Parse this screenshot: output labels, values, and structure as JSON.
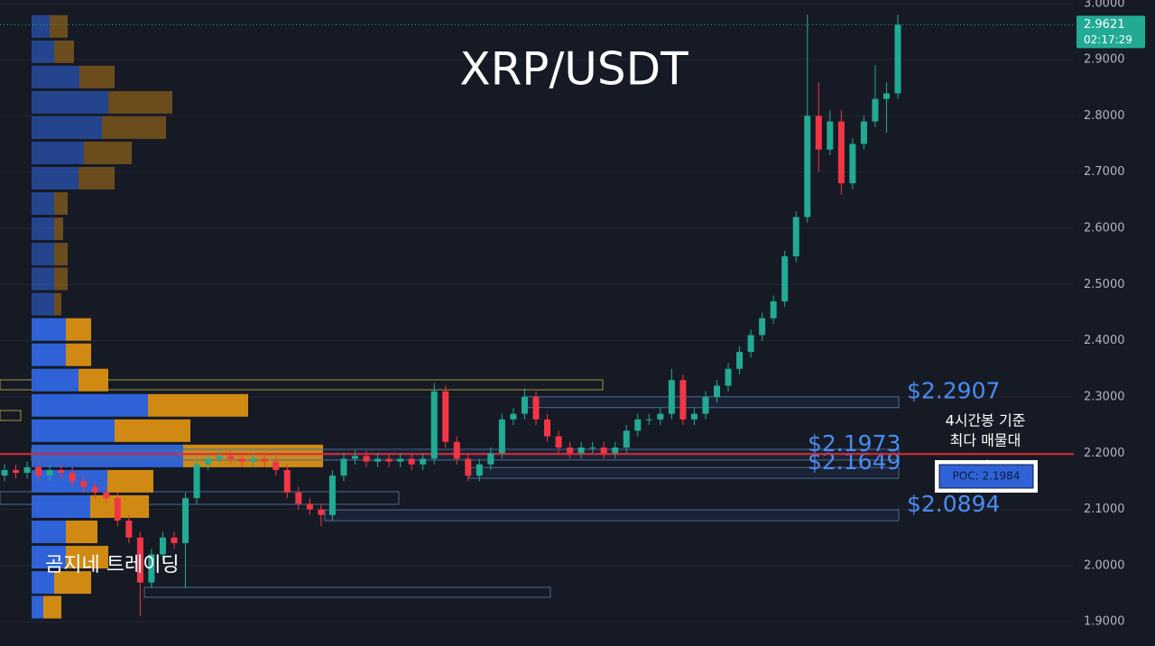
{
  "chart_data": {
    "type": "candlestick",
    "title": "XRP/USDT",
    "watermark": "곰지네 트레이딩",
    "up_color": "#22ab94",
    "down_color": "#f23645",
    "grid": true,
    "ylim": [
      1.857,
      3.006
    ],
    "yticks": [
      {
        "value": 1.9,
        "label": "1.9000"
      },
      {
        "value": 2.0,
        "label": "2.0000"
      },
      {
        "value": 2.1,
        "label": "2.1000"
      },
      {
        "value": 2.2,
        "label": "2.2000"
      },
      {
        "value": 2.3,
        "label": "2.3000"
      },
      {
        "value": 2.4,
        "label": "2.4000"
      },
      {
        "value": 2.5,
        "label": "2.5000"
      },
      {
        "value": 2.6,
        "label": "2.6000"
      },
      {
        "value": 2.7,
        "label": "2.7000"
      },
      {
        "value": 2.8,
        "label": "2.8000"
      },
      {
        "value": 2.9,
        "label": "2.9000"
      },
      {
        "value": 3.0,
        "label": "3.0000"
      }
    ],
    "open": [
      2.16,
      2.17,
      2.165,
      2.175,
      2.16,
      2.17,
      2.165,
      2.15,
      2.14,
      2.13,
      2.12,
      2.08,
      2.05,
      1.97,
      2.02,
      2.05,
      2.04,
      2.12,
      2.18,
      2.19,
      2.195,
      2.19,
      2.185,
      2.19,
      2.185,
      2.17,
      2.13,
      2.11,
      2.1,
      2.09,
      2.16,
      2.19,
      2.195,
      2.185,
      2.19,
      2.185,
      2.19,
      2.18,
      2.19,
      2.31,
      2.22,
      2.19,
      2.16,
      2.18,
      2.2,
      2.26,
      2.27,
      2.3,
      2.26,
      2.23,
      2.21,
      2.2,
      2.21,
      2.21,
      2.2,
      2.21,
      2.24,
      2.26,
      2.26,
      2.27,
      2.33,
      2.26,
      2.27,
      2.3,
      2.32,
      2.35,
      2.38,
      2.41,
      2.44,
      2.47,
      2.55,
      2.62,
      2.8,
      2.74,
      2.79,
      2.68,
      2.75,
      2.79,
      2.83,
      2.84
    ],
    "high": [
      2.18,
      2.18,
      2.185,
      2.185,
      2.18,
      2.18,
      2.175,
      2.16,
      2.15,
      2.14,
      2.13,
      2.09,
      2.06,
      2.03,
      2.06,
      2.06,
      2.13,
      2.19,
      2.2,
      2.205,
      2.205,
      2.2,
      2.2,
      2.2,
      2.195,
      2.18,
      2.14,
      2.12,
      2.11,
      2.17,
      2.2,
      2.205,
      2.205,
      2.2,
      2.2,
      2.2,
      2.2,
      2.2,
      2.325,
      2.32,
      2.23,
      2.2,
      2.19,
      2.21,
      2.27,
      2.28,
      2.315,
      2.31,
      2.27,
      2.24,
      2.22,
      2.22,
      2.22,
      2.22,
      2.22,
      2.25,
      2.27,
      2.27,
      2.28,
      2.35,
      2.34,
      2.28,
      2.31,
      2.33,
      2.36,
      2.39,
      2.42,
      2.45,
      2.48,
      2.56,
      2.63,
      2.98,
      2.86,
      2.81,
      2.81,
      2.76,
      2.8,
      2.89,
      2.86,
      2.98
    ],
    "low": [
      2.15,
      2.155,
      2.155,
      2.15,
      2.15,
      2.155,
      2.14,
      2.13,
      2.12,
      2.11,
      2.07,
      2.04,
      1.91,
      1.96,
      2.01,
      2.03,
      1.96,
      2.11,
      2.17,
      2.18,
      2.18,
      2.175,
      2.175,
      2.175,
      2.16,
      2.12,
      2.1,
      2.09,
      2.07,
      2.08,
      2.15,
      2.18,
      2.175,
      2.175,
      2.175,
      2.175,
      2.17,
      2.17,
      2.18,
      2.21,
      2.18,
      2.15,
      2.15,
      2.17,
      2.19,
      2.25,
      2.26,
      2.25,
      2.22,
      2.2,
      2.19,
      2.19,
      2.2,
      2.19,
      2.19,
      2.2,
      2.23,
      2.25,
      2.25,
      2.26,
      2.25,
      2.25,
      2.26,
      2.29,
      2.31,
      2.34,
      2.37,
      2.4,
      2.43,
      2.46,
      2.54,
      2.61,
      2.7,
      2.73,
      2.66,
      2.67,
      2.74,
      2.78,
      2.77,
      2.83
    ],
    "close": [
      2.17,
      2.165,
      2.175,
      2.16,
      2.17,
      2.165,
      2.15,
      2.14,
      2.13,
      2.12,
      2.08,
      2.05,
      1.97,
      2.02,
      2.05,
      2.04,
      2.12,
      2.18,
      2.19,
      2.195,
      2.19,
      2.185,
      2.19,
      2.185,
      2.17,
      2.13,
      2.11,
      2.1,
      2.09,
      2.16,
      2.19,
      2.195,
      2.185,
      2.19,
      2.185,
      2.19,
      2.18,
      2.19,
      2.31,
      2.22,
      2.19,
      2.16,
      2.18,
      2.2,
      2.26,
      2.27,
      2.3,
      2.26,
      2.23,
      2.21,
      2.2,
      2.21,
      2.21,
      2.2,
      2.21,
      2.24,
      2.26,
      2.26,
      2.27,
      2.33,
      2.26,
      2.27,
      2.3,
      2.32,
      2.35,
      2.38,
      2.41,
      2.44,
      2.47,
      2.55,
      2.62,
      2.8,
      2.74,
      2.79,
      2.68,
      2.75,
      2.79,
      2.83,
      2.84,
      2.9621
    ],
    "last_price": 2.9621,
    "countdown": "02:17:29",
    "volume_profile": {
      "buy_color": "#2f62d6",
      "sell_color": "#d08a14",
      "row_prices": [
        2.959,
        2.914,
        2.869,
        2.824,
        2.779,
        2.734,
        2.689,
        2.644,
        2.599,
        2.554,
        2.51,
        2.465,
        2.42,
        2.375,
        2.33,
        2.285,
        2.24,
        2.195,
        2.15,
        2.105,
        2.06,
        2.015,
        1.97,
        1.926
      ],
      "buy": [
        20,
        25,
        53,
        85,
        78,
        58,
        52,
        25,
        25,
        25,
        25,
        25,
        38,
        38,
        52,
        129,
        92,
        168,
        84,
        65,
        38,
        38,
        25,
        13
      ],
      "sell": [
        20,
        22,
        39,
        71,
        71,
        53,
        40,
        15,
        10,
        15,
        15,
        8,
        28,
        28,
        33,
        111,
        84,
        155,
        51,
        65,
        35,
        47,
        41,
        20
      ]
    },
    "levels": [
      {
        "value": 2.2907,
        "label": "$2.2907"
      },
      {
        "value": 2.1973,
        "label": "$2.1973"
      },
      {
        "value": 2.1649,
        "label": "$2.1649"
      },
      {
        "value": 2.0894,
        "label": "$2.0894"
      }
    ],
    "poc": {
      "value": 2.1984,
      "label": "POC: 2.1984",
      "note": [
        "4시간봉 기준",
        "최다 매물대"
      ]
    }
  }
}
